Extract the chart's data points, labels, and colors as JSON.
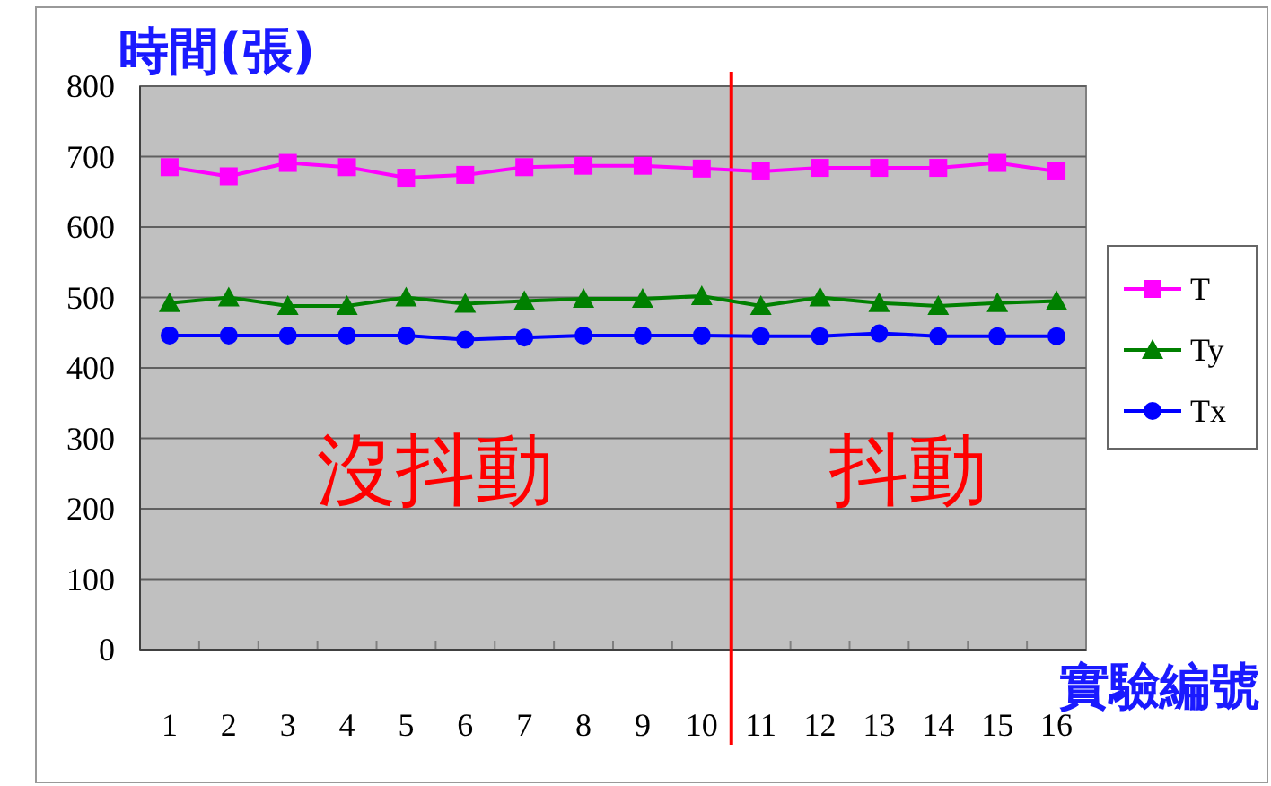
{
  "chart_data": {
    "type": "line",
    "ylabel": "時間(張)",
    "xlabel": "實驗編號",
    "x": [
      1,
      2,
      3,
      4,
      5,
      6,
      7,
      8,
      9,
      10,
      11,
      12,
      13,
      14,
      15,
      16
    ],
    "series": [
      {
        "name": "T",
        "color": "#ff00ff",
        "marker": "square",
        "values": [
          685,
          672,
          691,
          685,
          670,
          674,
          685,
          687,
          687,
          683,
          679,
          684,
          684,
          684,
          691,
          679
        ]
      },
      {
        "name": "Ty",
        "color": "#008000",
        "marker": "triangle",
        "values": [
          492,
          500,
          488,
          488,
          500,
          491,
          495,
          498,
          498,
          502,
          488,
          500,
          492,
          488,
          492,
          495
        ]
      },
      {
        "name": "Tx",
        "color": "#0000ff",
        "marker": "circle",
        "values": [
          446,
          446,
          446,
          446,
          446,
          440,
          443,
          446,
          446,
          446,
          445,
          445,
          449,
          445,
          445,
          445
        ]
      }
    ],
    "xlim": [
      0.5,
      16.5
    ],
    "ylim": [
      0,
      800
    ],
    "xticks": [
      1,
      2,
      3,
      4,
      5,
      6,
      7,
      8,
      9,
      10,
      11,
      12,
      13,
      14,
      15,
      16
    ],
    "yticks": [
      0,
      100,
      200,
      300,
      400,
      500,
      600,
      700,
      800
    ],
    "grid": "y",
    "legend": "right",
    "line_style": "solid",
    "ref_lines": [
      {
        "axis": "x",
        "value": 10.5,
        "color": "#ff0000"
      }
    ],
    "annotations": [
      "沒抖動",
      "抖動"
    ]
  }
}
